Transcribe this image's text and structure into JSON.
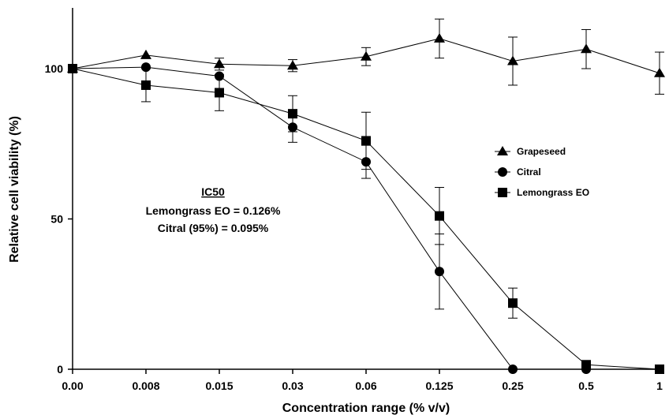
{
  "chart_data": {
    "type": "line",
    "xlabel": "Concentration range (% v/v)",
    "ylabel": "Relative cell viability (%)",
    "categories": [
      "0.00",
      "0.008",
      "0.015",
      "0.03",
      "0.06",
      "0.125",
      "0.25",
      "0.5",
      "1"
    ],
    "ylim": [
      0,
      120
    ],
    "yticks": [
      "0",
      "50",
      "100"
    ],
    "grid": false,
    "legend_position": "right",
    "series": [
      {
        "name": "Grapeseed",
        "marker": "triangle",
        "values": [
          100,
          104.5,
          101.5,
          101,
          104,
          110,
          102.5,
          106.5,
          98.5
        ],
        "errors": [
          0,
          0,
          2,
          2,
          3,
          6.5,
          8,
          6.5,
          7
        ]
      },
      {
        "name": "Citral",
        "marker": "circle",
        "values": [
          100,
          100.5,
          97.5,
          80.5,
          69,
          32.5,
          0,
          0,
          0
        ],
        "errors": [
          0,
          0,
          0,
          5,
          5.5,
          12.5,
          0,
          0,
          0
        ]
      },
      {
        "name": "Lemongrass EO",
        "marker": "square",
        "values": [
          100,
          94.5,
          92,
          85,
          76,
          51,
          22,
          1.5,
          0
        ],
        "errors": [
          0,
          5.5,
          6,
          6,
          9.5,
          9.5,
          5,
          0,
          0
        ]
      }
    ],
    "annotation": {
      "title": "IC50",
      "lines": [
        "Lemongrass EO = 0.126%",
        "Citral (95%) = 0.095%"
      ]
    }
  }
}
